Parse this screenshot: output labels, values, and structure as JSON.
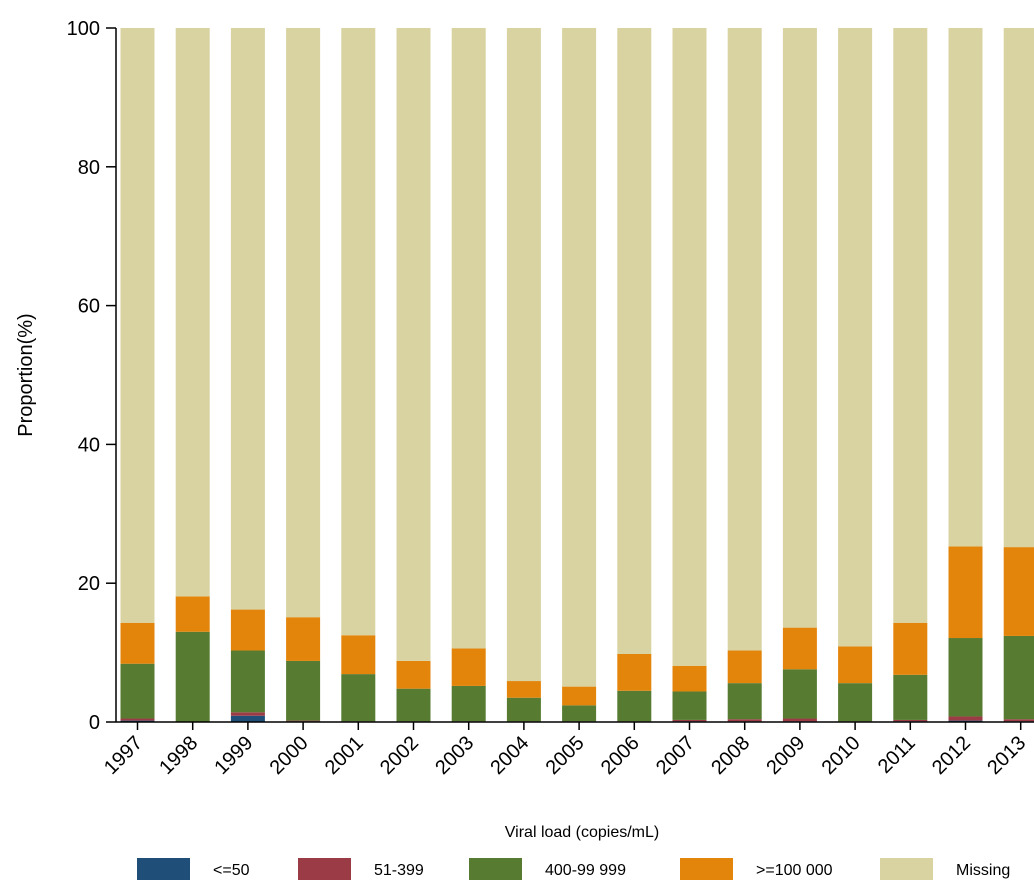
{
  "chart_data": {
    "type": "bar",
    "stacked": true,
    "title": "",
    "xlabel": "",
    "ylabel": "Proportion(%)",
    "ylim": [
      0,
      100
    ],
    "yticks": [
      0,
      20,
      40,
      60,
      80,
      100
    ],
    "grid": false,
    "legend_title": "Viral load (copies/mL)",
    "legend_position": "bottom",
    "categories": [
      "1997",
      "1998",
      "1999",
      "2000",
      "2001",
      "2002",
      "2003",
      "2004",
      "2005",
      "2006",
      "2007",
      "2008",
      "2009",
      "2010",
      "2011",
      "2012",
      "2013"
    ],
    "series": [
      {
        "name": "<=50",
        "color": "#1f4e79",
        "values": [
          0.2,
          0.0,
          0.9,
          0.1,
          0.0,
          0.0,
          0.0,
          0.0,
          0.0,
          0.0,
          0.1,
          0.1,
          0.1,
          0.0,
          0.1,
          0.2,
          0.1
        ]
      },
      {
        "name": "51-399",
        "color": "#9b3b45",
        "values": [
          0.3,
          0.0,
          0.5,
          0.1,
          0.1,
          0.1,
          0.1,
          0.1,
          0.1,
          0.1,
          0.2,
          0.3,
          0.4,
          0.1,
          0.2,
          0.6,
          0.3
        ]
      },
      {
        "name": "400-99 999",
        "color": "#567b31",
        "values": [
          7.9,
          13.0,
          8.9,
          8.6,
          6.8,
          4.7,
          5.1,
          3.4,
          2.3,
          4.4,
          4.1,
          5.2,
          7.1,
          5.5,
          6.5,
          11.3,
          12.0
        ]
      },
      {
        "name": ">=100 000",
        "color": "#e3850b",
        "values": [
          5.9,
          5.1,
          5.9,
          6.3,
          5.6,
          4.0,
          5.4,
          2.4,
          2.7,
          5.3,
          3.7,
          4.7,
          6.0,
          5.3,
          7.5,
          13.2,
          12.8
        ]
      },
      {
        "name": "Missing",
        "color": "#d9d3a2",
        "values": [
          85.7,
          81.9,
          83.8,
          84.9,
          87.5,
          91.2,
          89.4,
          94.1,
          94.9,
          90.2,
          91.9,
          89.7,
          86.4,
          89.1,
          85.7,
          74.7,
          74.8
        ]
      }
    ]
  }
}
